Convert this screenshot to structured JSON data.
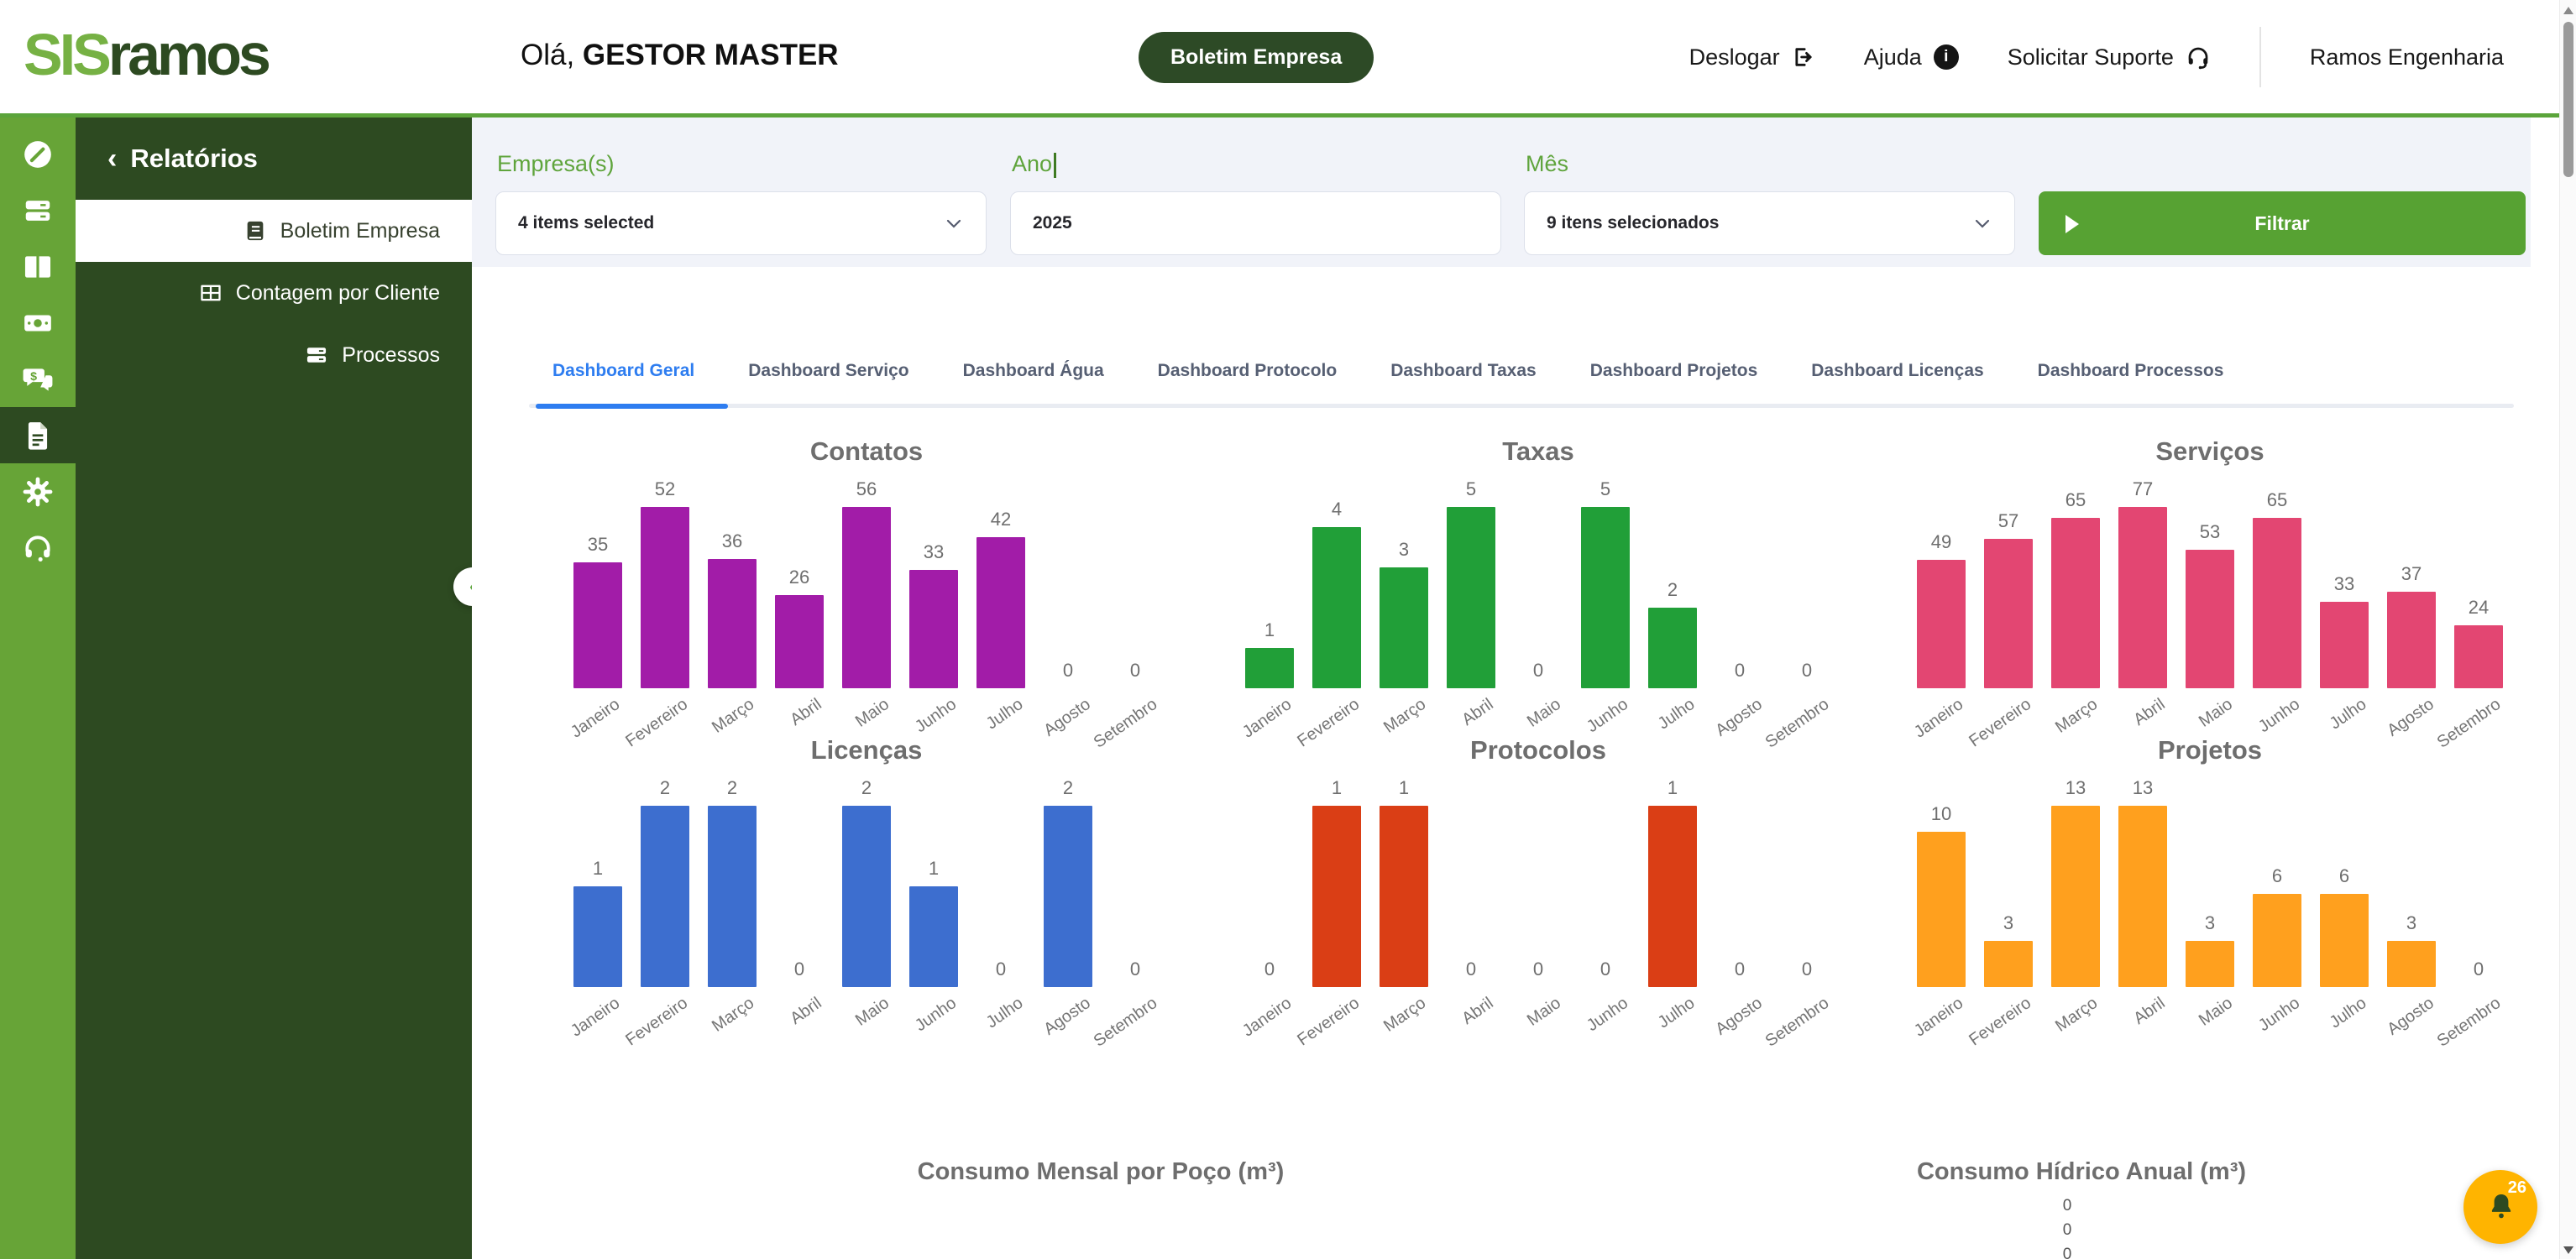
{
  "header": {
    "logo_sis": "SIS",
    "logo_ramos": "ramos",
    "greeting_prefix": "Olá, ",
    "greeting_name": "GESTOR MASTER",
    "badge": "Boletim Empresa",
    "nav": [
      {
        "label": "Deslogar",
        "icon": "sign-out-icon"
      },
      {
        "label": "Ajuda",
        "icon": "info-icon"
      },
      {
        "label": "Solicitar Suporte",
        "icon": "headset-icon"
      }
    ],
    "company": "Ramos Engenharia"
  },
  "sidebar": {
    "rail_icons": [
      "speedometer-icon",
      "server-icon",
      "columns-icon",
      "money-icon",
      "comments-dollar-icon",
      "file-icon",
      "gear-icon",
      "headset-icon"
    ],
    "active_rail_icon": "file-icon",
    "panel_title": "Relatórios",
    "items": [
      {
        "label": "Boletim Empresa",
        "icon": "book-icon",
        "active": true
      },
      {
        "label": "Contagem por Cliente",
        "icon": "table-icon",
        "active": false
      },
      {
        "label": "Processos",
        "icon": "server-icon",
        "active": false
      }
    ]
  },
  "filters": {
    "empresa_label": "Empresa(s)",
    "empresa_value": "4 items selected",
    "ano_label": "Ano",
    "ano_value": "2025",
    "mes_label": "Mês",
    "mes_value": "9 itens selecionados",
    "filtrar_label": "Filtrar"
  },
  "tabs": [
    "Dashboard Geral",
    "Dashboard Serviço",
    "Dashboard Água",
    "Dashboard Protocolo",
    "Dashboard Taxas",
    "Dashboard Projetos",
    "Dashboard Licenças",
    "Dashboard Processos"
  ],
  "active_tab": "Dashboard Geral",
  "chart_data": [
    {
      "type": "bar",
      "title": "Contatos",
      "color": "#A21CA8",
      "categories": [
        "Janeiro",
        "Fevereiro",
        "Março",
        "Abril",
        "Maio",
        "Junho",
        "Julho",
        "Agosto",
        "Setembro"
      ],
      "values": [
        35,
        52,
        36,
        26,
        56,
        33,
        42,
        0,
        0
      ]
    },
    {
      "type": "bar",
      "title": "Taxas",
      "color": "#219F38",
      "categories": [
        "Janeiro",
        "Fevereiro",
        "Março",
        "Abril",
        "Maio",
        "Junho",
        "Julho",
        "Agosto",
        "Setembro"
      ],
      "values": [
        1,
        4,
        3,
        5,
        0,
        5,
        2,
        0,
        0
      ]
    },
    {
      "type": "bar",
      "title": "Serviços",
      "color": "#E34672",
      "categories": [
        "Janeiro",
        "Fevereiro",
        "Março",
        "Abril",
        "Maio",
        "Junho",
        "Julho",
        "Agosto",
        "Setembro"
      ],
      "values": [
        49,
        57,
        65,
        77,
        53,
        65,
        33,
        37,
        24
      ]
    },
    {
      "type": "bar",
      "title": "Licenças",
      "color": "#3D6ECF",
      "categories": [
        "Janeiro",
        "Fevereiro",
        "Março",
        "Abril",
        "Maio",
        "Junho",
        "Julho",
        "Agosto",
        "Setembro"
      ],
      "values": [
        1,
        2,
        2,
        0,
        2,
        1,
        0,
        2,
        0
      ]
    },
    {
      "type": "bar",
      "title": "Protocolos",
      "color": "#DA3E15",
      "categories": [
        "Janeiro",
        "Fevereiro",
        "Março",
        "Abril",
        "Maio",
        "Junho",
        "Julho",
        "Agosto",
        "Setembro"
      ],
      "values": [
        0,
        1,
        1,
        0,
        0,
        0,
        1,
        0,
        0
      ]
    },
    {
      "type": "bar",
      "title": "Projetos",
      "color": "#FFA01E",
      "categories": [
        "Janeiro",
        "Fevereiro",
        "Março",
        "Abril",
        "Maio",
        "Junho",
        "Julho",
        "Agosto",
        "Setembro"
      ],
      "values": [
        10,
        3,
        13,
        13,
        3,
        6,
        6,
        3,
        0
      ]
    }
  ],
  "bottom": {
    "left_title": "Consumo Mensal por Poço (m³)",
    "right_title": "Consumo Hídrico Anual (m³)",
    "zeros": [
      "0",
      "0",
      "0"
    ]
  },
  "notifications": {
    "count": "26"
  },
  "colors": {
    "rail_green": "#67A437",
    "dark_green": "#2D4A21",
    "accent_green": "#57A233",
    "header_underline": "#5BA43B",
    "label_green": "#5FA43C",
    "active_tab_blue": "#2E7DF0",
    "filter_bg": "#F1F3F9",
    "bell_amber": "#FFB400"
  }
}
